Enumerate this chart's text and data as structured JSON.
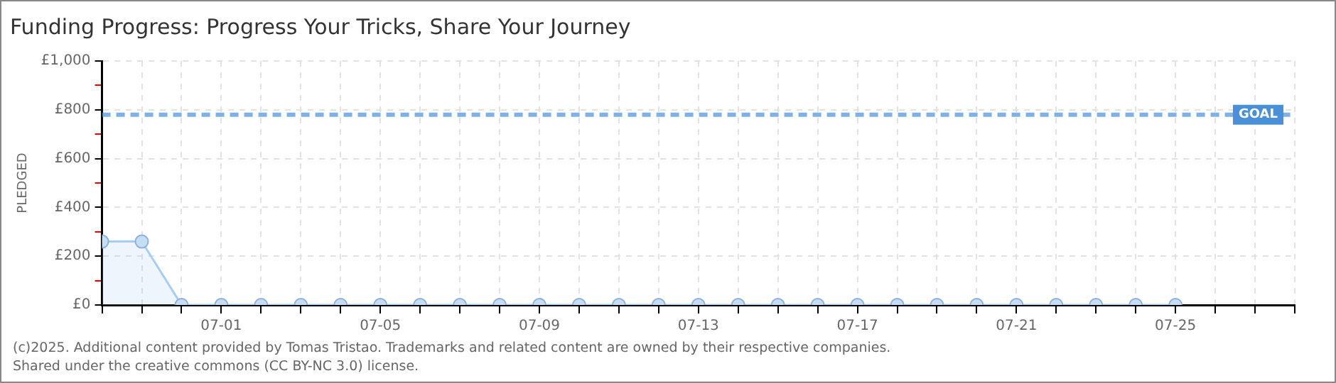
{
  "chart_data": {
    "type": "area",
    "title": "Funding Progress: Progress Your Tricks, Share Your Journey",
    "ylabel": "PLEDGED",
    "x": [
      "--06-28",
      "--06-29",
      "--06-30",
      "--07-01",
      "--07-02",
      "--07-03",
      "--07-04",
      "--07-05",
      "--07-06",
      "--07-07",
      "--07-08",
      "--07-09",
      "--07-10",
      "--07-11",
      "--07-12",
      "--07-13",
      "--07-14",
      "--07-15",
      "--07-16",
      "--07-17",
      "--07-18",
      "--07-19",
      "--07-20",
      "--07-21",
      "--07-22",
      "--07-23",
      "--07-24",
      "--07-25"
    ],
    "series": [
      {
        "color": "#a9cdf2",
        "values": [
          260,
          260,
          0,
          0,
          0,
          0,
          0,
          0,
          0,
          0,
          0,
          0,
          0,
          0,
          0,
          0,
          0,
          0,
          0,
          0,
          0,
          0,
          0,
          0,
          0,
          0,
          0,
          0
        ]
      }
    ],
    "xlim": [
      "--06-28",
      "--07-28"
    ],
    "xticks": [
      {
        "value": "--06-28",
        "label": null
      },
      {
        "value": "--06-29",
        "label": null
      },
      {
        "value": "--06-30",
        "label": null
      },
      {
        "value": "--07-01",
        "label": "07-01"
      },
      {
        "value": "--07-02",
        "label": null
      },
      {
        "value": "--07-03",
        "label": null
      },
      {
        "value": "--07-04",
        "label": null
      },
      {
        "value": "--07-05",
        "label": "07-05"
      },
      {
        "value": "--07-06",
        "label": null
      },
      {
        "value": "--07-07",
        "label": null
      },
      {
        "value": "--07-08",
        "label": null
      },
      {
        "value": "--07-09",
        "label": "07-09"
      },
      {
        "value": "--07-10",
        "label": null
      },
      {
        "value": "--07-11",
        "label": null
      },
      {
        "value": "--07-12",
        "label": null
      },
      {
        "value": "--07-13",
        "label": "07-13"
      },
      {
        "value": "--07-14",
        "label": null
      },
      {
        "value": "--07-15",
        "label": null
      },
      {
        "value": "--07-16",
        "label": null
      },
      {
        "value": "--07-17",
        "label": "07-17"
      },
      {
        "value": "--07-18",
        "label": null
      },
      {
        "value": "--07-19",
        "label": null
      },
      {
        "value": "--07-20",
        "label": null
      },
      {
        "value": "--07-21",
        "label": "07-21"
      },
      {
        "value": "--07-22",
        "label": null
      },
      {
        "value": "--07-23",
        "label": null
      },
      {
        "value": "--07-24",
        "label": null
      },
      {
        "value": "--07-25",
        "label": "07-25"
      },
      {
        "value": "--07-26",
        "label": null
      },
      {
        "value": "--07-27",
        "label": null
      },
      {
        "value": "--07-28",
        "label": null
      }
    ],
    "ylim": [
      0,
      1000
    ],
    "yticks": [
      {
        "value": 0,
        "label": "£0"
      },
      {
        "value": 100,
        "label": null
      },
      {
        "value": 200,
        "label": "£200"
      },
      {
        "value": 300,
        "label": null
      },
      {
        "value": 400,
        "label": "£400"
      },
      {
        "value": 500,
        "label": null
      },
      {
        "value": 600,
        "label": "£600"
      },
      {
        "value": 700,
        "label": null
      },
      {
        "value": 800,
        "label": "£800"
      },
      {
        "value": 900,
        "label": null
      },
      {
        "value": 1000,
        "label": "£1,000"
      }
    ],
    "grid": true,
    "marker": "circle",
    "line_style": "solid",
    "ref_lines": [
      {
        "axis": "y",
        "value": 780,
        "label": "GOAL",
        "color": "#4a90d9",
        "line_style": "dashed"
      }
    ],
    "annotations": [
      "(c)2025. Additional content provided by Tomas Tristao. Trademarks and related content are owned by their respective companies.",
      "Shared under the creative commons (CC BY-NC 3.0) license."
    ]
  }
}
